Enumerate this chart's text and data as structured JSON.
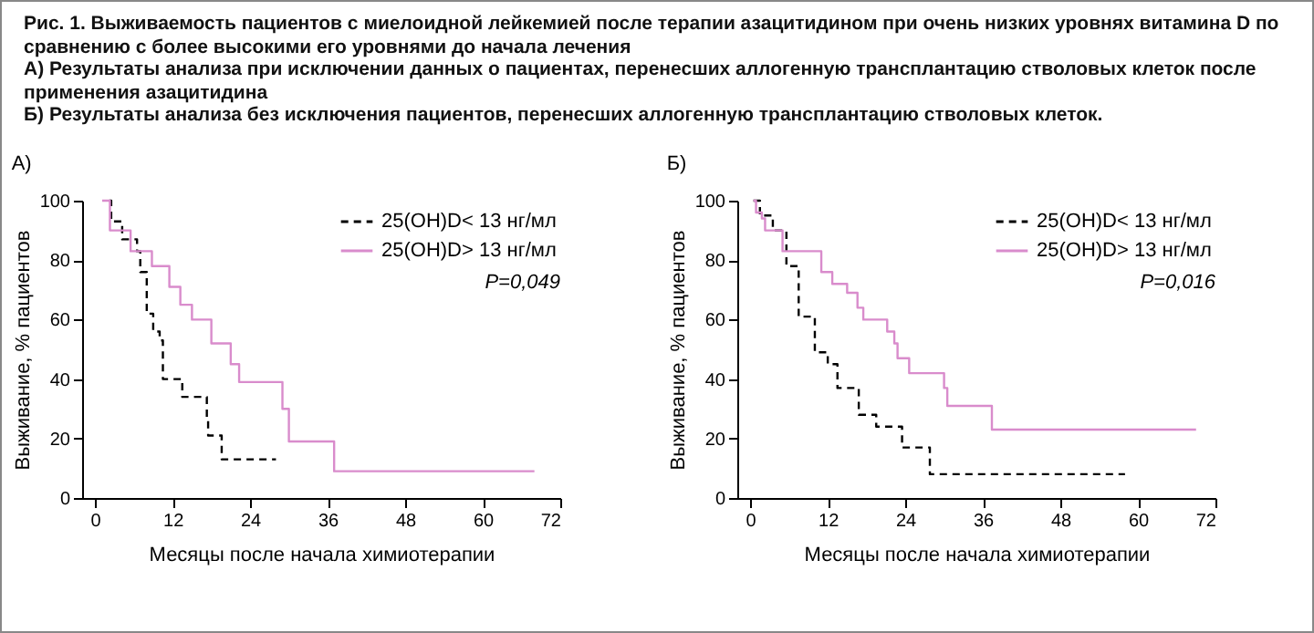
{
  "chart_data": [
    {
      "type": "other",
      "title": "Рис. 1. Выживаемость пациентов с миелоидной лейкемией после терапии азацитидином при очень низких уровнях витамина D по сравнению с более высокими его уровнями до начала лечения",
      "annotations": [
        "А) Результаты анализа при исключении данных о пациентах, перенесших аллогенную трансплантацию стволовых клеток после применения азацитидина",
        "Б) Результаты анализа без исключения пациентов, перенесших аллогенную трансплантацию стволовых клеток."
      ]
    },
    {
      "type": "step",
      "title": "А)",
      "xlabel": "Месяцы после начала химиотерапии",
      "ylabel": "Выживание, % пациентов",
      "xlim": [
        -2,
        72
      ],
      "xticks": [
        0,
        12,
        24,
        36,
        48,
        60,
        72
      ],
      "ylim": [
        0,
        100
      ],
      "yticks": [
        0,
        20,
        40,
        60,
        80,
        100
      ],
      "legend": "top right",
      "annotations": [
        "P=0,049"
      ],
      "series": [
        {
          "name": "25(OH)D< 13 нг/мл",
          "color": "#000000",
          "line_style": "dashed",
          "x": [
            2.2,
            2.5,
            4.2,
            6.5,
            7,
            8,
            9,
            10,
            10.5,
            13.5,
            17.3,
            17.5,
            19.6,
            28
          ],
          "values": [
            100,
            93,
            87,
            83,
            76,
            62,
            56,
            53,
            40,
            34,
            27,
            21,
            13,
            13
          ]
        },
        {
          "name": "25(OH)D> 13 нг/мл",
          "color": "#d98ccc",
          "line_style": "solid",
          "x": [
            1.1,
            2.3,
            5.5,
            8.8,
            11.5,
            13.2,
            15,
            18,
            21,
            22.3,
            29,
            30,
            37,
            68
          ],
          "values": [
            100,
            90,
            83,
            78,
            71,
            65,
            60,
            52,
            45,
            39,
            30,
            19,
            9,
            9
          ]
        }
      ]
    },
    {
      "type": "step",
      "title": "Б)",
      "xlabel": "Месяцы после начала химиотерапии",
      "ylabel": "Выживание, % пациентов",
      "xlim": [
        -2,
        72
      ],
      "xticks": [
        0,
        12,
        24,
        36,
        48,
        60,
        72
      ],
      "ylim": [
        0,
        100
      ],
      "yticks": [
        0,
        20,
        40,
        60,
        80,
        100
      ],
      "legend": "top right",
      "annotations": [
        "P=0,016"
      ],
      "series": [
        {
          "name": "25(OH)D< 13 нг/мл",
          "color": "#000000",
          "line_style": "dashed",
          "x": [
            0.5,
            1.5,
            3.5,
            5.6,
            7.5,
            10,
            12,
            13.5,
            16.8,
            19.5,
            23.5,
            27.8,
            58
          ],
          "values": [
            100,
            95,
            90,
            78,
            61,
            49,
            45,
            37,
            28,
            24,
            17,
            8,
            8
          ]
        },
        {
          "name": "25(OH)D> 13 нг/мл",
          "color": "#d98ccc",
          "line_style": "solid",
          "x": [
            0.5,
            0.9,
            1.8,
            2.3,
            5,
            11,
            12.7,
            15,
            16.6,
            17.5,
            21.2,
            22.3,
            22.8,
            24.6,
            30,
            30.5,
            37.4,
            69
          ],
          "values": [
            100,
            96,
            94,
            90,
            83,
            76,
            72,
            69,
            64,
            60,
            56,
            52,
            47,
            42,
            37,
            31,
            23,
            23
          ]
        }
      ]
    }
  ]
}
